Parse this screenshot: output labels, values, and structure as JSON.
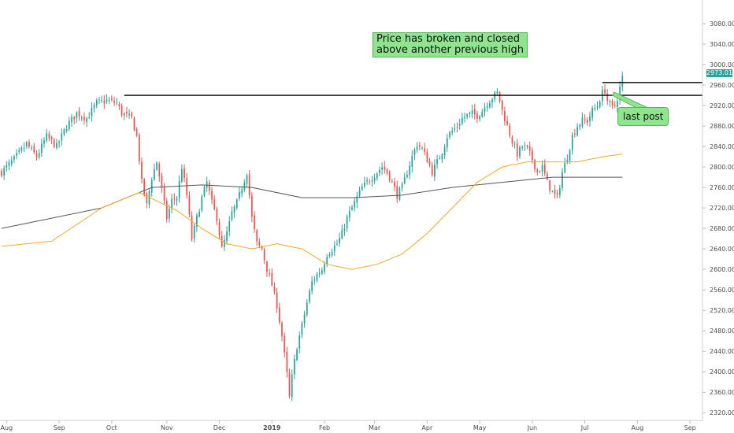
{
  "chart_data": {
    "type": "candlestick",
    "title": "",
    "x_axis": {
      "tick_labels": [
        "Aug",
        "Sep",
        "Oct",
        "Nov",
        "Dec",
        "2019",
        "Feb",
        "Mar",
        "Apr",
        "May",
        "Jun",
        "Jul",
        "Aug",
        "Sep"
      ]
    },
    "y_axis": {
      "position": "right",
      "ylim": [
        2305,
        3120
      ],
      "ticks": [
        2320,
        2360,
        2400,
        2440,
        2480,
        2520,
        2560,
        2600,
        2640,
        2680,
        2720,
        2760,
        2800,
        2840,
        2880,
        2920,
        2960,
        3000,
        3040,
        3080
      ],
      "tick_labels": [
        "2320.00",
        "2360.00",
        "2400.00",
        "2440.00",
        "2480.00",
        "2520.00",
        "2560.00",
        "2600.00",
        "2640.00",
        "2680.00",
        "2720.00",
        "2760.00",
        "2800.00",
        "2840.00",
        "2880.00",
        "2920.00",
        "2960.00",
        "3000.00",
        "3040.00",
        "3080.00"
      ]
    },
    "last_price": 2973.01,
    "last_price_label": "2973.01",
    "close_path": [
      [
        0,
        2790
      ],
      [
        5,
        2815
      ],
      [
        10,
        2845
      ],
      [
        14,
        2820
      ],
      [
        18,
        2860
      ],
      [
        22,
        2840
      ],
      [
        26,
        2880
      ],
      [
        30,
        2905
      ],
      [
        34,
        2895
      ],
      [
        38,
        2925
      ],
      [
        42,
        2930
      ],
      [
        46,
        2925
      ],
      [
        48,
        2905
      ],
      [
        52,
        2895
      ],
      [
        54,
        2860
      ],
      [
        56,
        2770
      ],
      [
        58,
        2725
      ],
      [
        60,
        2780
      ],
      [
        62,
        2810
      ],
      [
        64,
        2755
      ],
      [
        66,
        2700
      ],
      [
        68,
        2735
      ],
      [
        70,
        2740
      ],
      [
        72,
        2800
      ],
      [
        74,
        2745
      ],
      [
        76,
        2660
      ],
      [
        78,
        2700
      ],
      [
        80,
        2740
      ],
      [
        82,
        2770
      ],
      [
        84,
        2730
      ],
      [
        86,
        2700
      ],
      [
        88,
        2640
      ],
      [
        90,
        2670
      ],
      [
        92,
        2710
      ],
      [
        94,
        2730
      ],
      [
        96,
        2760
      ],
      [
        98,
        2790
      ],
      [
        100,
        2700
      ],
      [
        102,
        2650
      ],
      [
        104,
        2640
      ],
      [
        106,
        2600
      ],
      [
        108,
        2570
      ],
      [
        110,
        2530
      ],
      [
        112,
        2470
      ],
      [
        114,
        2395
      ],
      [
        115,
        2350
      ],
      [
        116,
        2390
      ],
      [
        118,
        2450
      ],
      [
        120,
        2490
      ],
      [
        122,
        2535
      ],
      [
        124,
        2575
      ],
      [
        126,
        2590
      ],
      [
        128,
        2600
      ],
      [
        130,
        2630
      ],
      [
        132,
        2640
      ],
      [
        134,
        2650
      ],
      [
        136,
        2670
      ],
      [
        138,
        2700
      ],
      [
        140,
        2720
      ],
      [
        142,
        2740
      ],
      [
        144,
        2760
      ],
      [
        146,
        2770
      ],
      [
        148,
        2780
      ],
      [
        150,
        2790
      ],
      [
        152,
        2800
      ],
      [
        154,
        2790
      ],
      [
        156,
        2770
      ],
      [
        158,
        2745
      ],
      [
        160,
        2760
      ],
      [
        162,
        2790
      ],
      [
        164,
        2820
      ],
      [
        166,
        2845
      ],
      [
        168,
        2835
      ],
      [
        170,
        2815
      ],
      [
        172,
        2790
      ],
      [
        174,
        2810
      ],
      [
        176,
        2830
      ],
      [
        178,
        2860
      ],
      [
        180,
        2870
      ],
      [
        182,
        2880
      ],
      [
        184,
        2895
      ],
      [
        186,
        2900
      ],
      [
        188,
        2905
      ],
      [
        190,
        2900
      ],
      [
        192,
        2910
      ],
      [
        194,
        2925
      ],
      [
        196,
        2935
      ],
      [
        198,
        2945
      ],
      [
        199,
        2930
      ],
      [
        200,
        2910
      ],
      [
        202,
        2880
      ],
      [
        204,
        2850
      ],
      [
        206,
        2825
      ],
      [
        208,
        2840
      ],
      [
        210,
        2835
      ],
      [
        212,
        2815
      ],
      [
        214,
        2790
      ],
      [
        216,
        2800
      ],
      [
        218,
        2770
      ],
      [
        220,
        2750
      ],
      [
        222,
        2740
      ],
      [
        224,
        2790
      ],
      [
        226,
        2820
      ],
      [
        228,
        2860
      ],
      [
        230,
        2880
      ],
      [
        232,
        2890
      ],
      [
        234,
        2890
      ],
      [
        236,
        2910
      ],
      [
        238,
        2920
      ],
      [
        240,
        2945
      ],
      [
        241,
        2950
      ],
      [
        242,
        2930
      ],
      [
        244,
        2915
      ],
      [
        245,
        2920
      ],
      [
        246,
        2935
      ],
      [
        248,
        2975
      ]
    ],
    "ma_short": [
      [
        0,
        2645
      ],
      [
        20,
        2655
      ],
      [
        40,
        2720
      ],
      [
        55,
        2750
      ],
      [
        70,
        2715
      ],
      [
        80,
        2680
      ],
      [
        90,
        2650
      ],
      [
        100,
        2640
      ],
      [
        110,
        2650
      ],
      [
        120,
        2640
      ],
      [
        130,
        2610
      ],
      [
        140,
        2600
      ],
      [
        150,
        2610
      ],
      [
        160,
        2630
      ],
      [
        170,
        2670
      ],
      [
        180,
        2720
      ],
      [
        190,
        2770
      ],
      [
        200,
        2800
      ],
      [
        210,
        2810
      ],
      [
        220,
        2810
      ],
      [
        230,
        2810
      ],
      [
        240,
        2820
      ],
      [
        248,
        2825
      ]
    ],
    "ma_long": [
      [
        0,
        2680
      ],
      [
        40,
        2720
      ],
      [
        60,
        2760
      ],
      [
        80,
        2765
      ],
      [
        100,
        2760
      ],
      [
        120,
        2740
      ],
      [
        140,
        2740
      ],
      [
        160,
        2745
      ],
      [
        180,
        2760
      ],
      [
        200,
        2770
      ],
      [
        220,
        2780
      ],
      [
        240,
        2780
      ],
      [
        248,
        2780
      ]
    ],
    "horizontal_levels": [
      {
        "name": "previous-high-line",
        "y": 2940,
        "x_from": 49,
        "x_to": 280
      },
      {
        "name": "recent-high-line",
        "y": 2965,
        "x_from": 240,
        "x_to": 280
      }
    ],
    "annotations": [
      {
        "text_lines": [
          "Price has broken and closed",
          "above another previous high"
        ]
      },
      {
        "text": "last post"
      }
    ],
    "colors": {
      "up": "#26a69a",
      "down": "#ef5350",
      "ma_short": "#f5a623",
      "ma_long": "#555555",
      "level_line": "#000000",
      "annotation_bg": "#8ee58e",
      "annotation_border": "#4cbb4c",
      "grid": "none"
    }
  }
}
